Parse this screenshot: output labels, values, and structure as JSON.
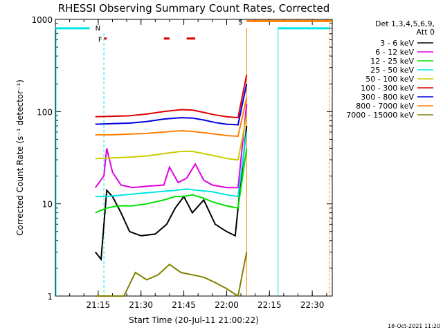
{
  "chart_data": {
    "type": "line",
    "title": "RHESSI Observing Summary Count Rates, Corrected",
    "xlabel": "Start Time (20-Jul-11 21:00:22)",
    "ylabel": "Corrected Count Rate (s⁻¹ detector⁻¹)",
    "y_scale": "log",
    "ylim": [
      1,
      1000
    ],
    "xlim": [
      "21:00",
      "22:37"
    ],
    "x_ticks": [
      "21:15",
      "21:30",
      "21:45",
      "22:00",
      "22:15",
      "22:30"
    ],
    "y_ticks": [
      "1",
      "10",
      "100",
      "1000"
    ],
    "legend_header": [
      "Det 1,3,4,5,6,9,",
      "Att 0"
    ],
    "legend_position": "top-right",
    "timestamp": "18-Oct-2021 11:20",
    "flags": {
      "night_label": "N",
      "night_color": "#00e5e5",
      "flare_label": "F",
      "flare_color": "#e00000",
      "saa_label": "S",
      "saa_color": "#ff7f00"
    },
    "series": [
      {
        "name": "3 - 6 keV",
        "color": "#000000",
        "x": [
          "21:14",
          "21:16",
          "21:18",
          "21:20",
          "21:23",
          "21:26",
          "21:30",
          "21:35",
          "21:39",
          "21:42",
          "21:45",
          "21:48",
          "21:52",
          "21:56",
          "22:00",
          "22:03",
          "22:07"
        ],
        "y": [
          3,
          2.5,
          14,
          12,
          8,
          5,
          4.5,
          4.7,
          6,
          9,
          12,
          8,
          11,
          6,
          5,
          4.5,
          70
        ]
      },
      {
        "name": "6 - 12 keV",
        "color": "#e000e0",
        "x": [
          "21:14",
          "21:17",
          "21:18",
          "21:20",
          "21:23",
          "21:27",
          "21:32",
          "21:38",
          "21:40",
          "21:43",
          "21:46",
          "21:49",
          "21:52",
          "21:55",
          "22:00",
          "22:04",
          "22:07"
        ],
        "y": [
          15,
          20,
          40,
          22,
          16,
          15,
          15.5,
          16,
          25,
          17,
          19,
          27,
          18,
          16,
          15,
          15,
          120
        ]
      },
      {
        "name": "12 - 25 keV",
        "color": "#00e000",
        "x": [
          "21:14",
          "21:18",
          "21:22",
          "21:27",
          "21:32",
          "21:38",
          "21:42",
          "21:45",
          "21:48",
          "21:52",
          "21:55",
          "22:00",
          "22:04",
          "22:07"
        ],
        "y": [
          8,
          9,
          9.5,
          9.5,
          10,
          11,
          12,
          12,
          12.5,
          11.5,
          10.5,
          9.5,
          9,
          40
        ]
      },
      {
        "name": "25 - 50 keV",
        "color": "#00e5e5",
        "x": [
          "21:14",
          "21:18",
          "21:24",
          "21:30",
          "21:36",
          "21:42",
          "21:46",
          "21:50",
          "21:55",
          "22:00",
          "22:04",
          "22:07"
        ],
        "y": [
          12,
          12,
          12.5,
          13,
          13.5,
          14,
          14.5,
          14,
          13.5,
          12.5,
          12,
          60
        ]
      },
      {
        "name": "50 - 100 keV",
        "color": "#cccc00",
        "x": [
          "21:14",
          "21:20",
          "21:26",
          "21:32",
          "21:38",
          "21:44",
          "21:48",
          "21:52",
          "21:56",
          "22:00",
          "22:04",
          "22:07"
        ],
        "y": [
          31,
          31.5,
          32,
          33,
          35,
          37,
          37,
          35,
          33,
          31,
          30,
          90
        ]
      },
      {
        "name": "100 - 300 keV",
        "color": "#e00000",
        "x": [
          "21:14",
          "21:20",
          "21:26",
          "21:32",
          "21:38",
          "21:44",
          "21:48",
          "21:52",
          "21:56",
          "22:00",
          "22:04",
          "22:07"
        ],
        "y": [
          88,
          89,
          90,
          94,
          100,
          105,
          104,
          98,
          92,
          88,
          86,
          250
        ]
      },
      {
        "name": "300 - 800 keV",
        "color": "#0000e0",
        "x": [
          "21:14",
          "21:20",
          "21:26",
          "21:32",
          "21:38",
          "21:44",
          "21:48",
          "21:52",
          "21:56",
          "22:00",
          "22:04",
          "22:07"
        ],
        "y": [
          73,
          74,
          75,
          78,
          83,
          86,
          85,
          81,
          76,
          73,
          72,
          200
        ]
      },
      {
        "name": "800 - 7000 keV",
        "color": "#ff7f00",
        "x": [
          "21:14",
          "21:20",
          "21:26",
          "21:32",
          "21:38",
          "21:44",
          "21:48",
          "21:52",
          "21:56",
          "22:00",
          "22:04",
          "22:07"
        ],
        "y": [
          56,
          56,
          57,
          58,
          60,
          62,
          61,
          59,
          57,
          55,
          54,
          140
        ]
      },
      {
        "name": "7000 - 15000 keV",
        "color": "#808000",
        "x": [
          "21:14",
          "21:20",
          "21:24",
          "21:28",
          "21:32",
          "21:36",
          "21:40",
          "21:44",
          "21:48",
          "21:52",
          "21:56",
          "22:00",
          "22:04",
          "22:07"
        ],
        "y": [
          1,
          1,
          1,
          1.8,
          1.5,
          1.7,
          2.2,
          1.8,
          1.7,
          1.6,
          1.4,
          1.2,
          1,
          3
        ]
      }
    ]
  }
}
